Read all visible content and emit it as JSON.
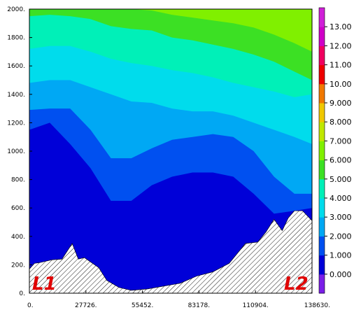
{
  "chart_data": {
    "type": "heatmap",
    "subtype": "filled-contour cross-section",
    "xlim": [
      0,
      138630
    ],
    "ylim": [
      0,
      2000
    ],
    "x_ticks": [
      "0.",
      "27726.",
      "55452.",
      "83178.",
      "110904.",
      "138630."
    ],
    "y_ticks": [
      "0.",
      "200.",
      "400.",
      "600.",
      "800.",
      "1000.",
      "1200.",
      "1400.",
      "1600.",
      "1800.",
      "2000."
    ],
    "grid": false,
    "colorbar": {
      "position": "right",
      "levels": [
        "0.000",
        "1.000",
        "2.000",
        "3.000",
        "4.000",
        "5.000",
        "6.000",
        "7.000",
        "8.000",
        "9.000",
        "10.00",
        "11.00",
        "12.00",
        "13.00"
      ],
      "colors": [
        "#7a1ee8",
        "#0000d8",
        "#0050f0",
        "#00a8f4",
        "#00dcec",
        "#00f0b8",
        "#3ce024",
        "#80f000",
        "#c0e800",
        "#f0c800",
        "#f07800",
        "#ee0000",
        "#f00060",
        "#d000c8",
        "#d020d8"
      ]
    },
    "terrain_hatch": true,
    "terrain_profile": {
      "x": [
        0,
        2500,
        5000,
        11000,
        16000,
        21000,
        24000,
        27000,
        30000,
        34000,
        38000,
        44000,
        50000,
        58000,
        66000,
        74000,
        82000,
        90000,
        98000,
        106000,
        112000,
        116000,
        120000,
        124000,
        127000,
        130000,
        134000,
        138630
      ],
      "y": [
        170,
        210,
        215,
        235,
        240,
        350,
        240,
        250,
        220,
        180,
        90,
        40,
        20,
        30,
        50,
        70,
        120,
        150,
        210,
        350,
        360,
        430,
        520,
        440,
        530,
        580,
        580,
        510
      ]
    },
    "contour_levels": {
      "x": [
        0,
        10000,
        20000,
        30000,
        40000,
        50000,
        60000,
        70000,
        80000,
        90000,
        100000,
        110000,
        120000,
        130000,
        138630
      ],
      "y_top_of_band": [
        {
          "level": "below 0.000",
          "y": [
            1150,
            1200,
            1050,
            880,
            650,
            650,
            760,
            820,
            850,
            850,
            820,
            700,
            560,
            580,
            600
          ]
        },
        {
          "level": "0.000",
          "y": [
            1290,
            1300,
            1300,
            1150,
            950,
            950,
            1020,
            1080,
            1100,
            1120,
            1100,
            1000,
            820,
            700,
            700
          ]
        },
        {
          "level": "1.000",
          "y": [
            1480,
            1500,
            1500,
            1450,
            1400,
            1350,
            1340,
            1300,
            1280,
            1280,
            1250,
            1200,
            1150,
            1100,
            1050
          ]
        },
        {
          "level": "2.000",
          "y": [
            1720,
            1740,
            1740,
            1700,
            1650,
            1620,
            1600,
            1570,
            1550,
            1520,
            1480,
            1450,
            1420,
            1380,
            1400
          ]
        },
        {
          "level": "3.000",
          "y": [
            1950,
            1960,
            1950,
            1930,
            1880,
            1860,
            1850,
            1800,
            1780,
            1750,
            1720,
            1680,
            1630,
            1560,
            1500
          ]
        },
        {
          "level": "4.000",
          "y": [
            2000,
            2000,
            2000,
            2000,
            2000,
            2000,
            1990,
            1960,
            1940,
            1920,
            1900,
            1870,
            1820,
            1760,
            1700
          ]
        },
        {
          "level": "5.000",
          "y": [
            2000,
            2000,
            2000,
            2000,
            2000,
            2000,
            2000,
            2000,
            2000,
            2000,
            2000,
            2000,
            1960,
            1900,
            1830
          ]
        }
      ]
    },
    "annotations": [
      "L1",
      "L2"
    ]
  }
}
